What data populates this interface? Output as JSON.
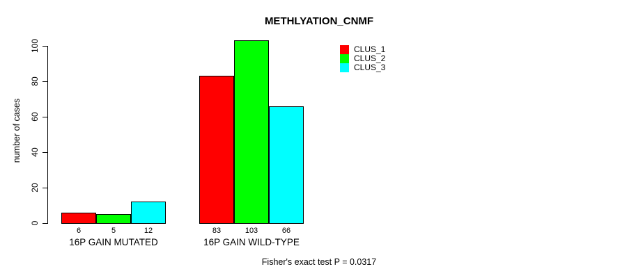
{
  "title": "METHLYATION_CNMF",
  "footnote": "Fisher's exact test P = 0.0317",
  "chart_data": {
    "type": "bar",
    "title": "METHLYATION_CNMF",
    "categories": [
      "16P GAIN MUTATED",
      "16P GAIN WILD-TYPE"
    ],
    "series": [
      {
        "name": "CLUS_1",
        "color": "#ff0000",
        "values": [
          6,
          83
        ]
      },
      {
        "name": "CLUS_2",
        "color": "#00ff00",
        "values": [
          5,
          103
        ]
      },
      {
        "name": "CLUS_3",
        "color": "#00ffff",
        "values": [
          12,
          66
        ]
      }
    ],
    "bar_value_labels": [
      [
        6,
        5,
        12
      ],
      [
        83,
        103,
        66
      ]
    ],
    "xlabel": "",
    "ylabel": "number of cases",
    "yticks": [
      0,
      20,
      40,
      60,
      80,
      100
    ],
    "ylim": [
      0,
      107
    ],
    "grid": false,
    "legend_position": "top-right",
    "legend_entries": [
      "CLUS_1",
      "CLUS_2",
      "CLUS_3"
    ],
    "annotation": "Fisher's exact test P = 0.0317",
    "colors": {
      "bar_border": "#000000",
      "axis": "#000000",
      "background": "#ffffff",
      "text": "#000000"
    }
  }
}
